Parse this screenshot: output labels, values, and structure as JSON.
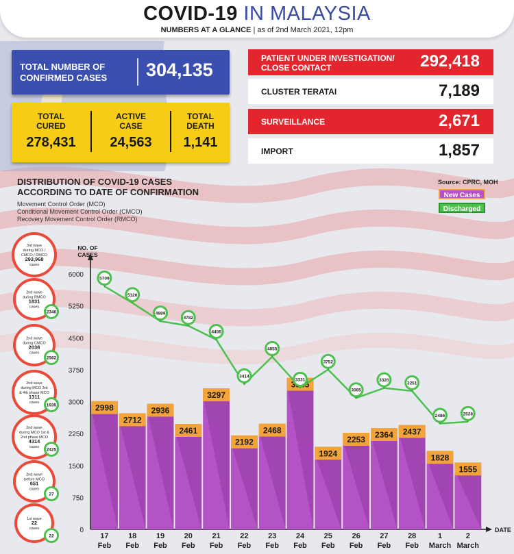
{
  "header": {
    "title_main": "COVID-19",
    "title_accent": "IN MALAYSIA",
    "subtitle_bold": "NUMBERS AT A GLANCE",
    "subtitle_rest": "| as of 2nd March 2021, 12pm"
  },
  "summary": {
    "total_confirmed_label_1": "TOTAL NUMBER OF",
    "total_confirmed_label_2": "CONFIRMED CASES",
    "total_confirmed_value": "304,135",
    "cured_label_1": "TOTAL",
    "cured_label_2": "CURED",
    "cured_value": "278,431",
    "active_label_1": "ACTIVE",
    "active_label_2": "CASE",
    "active_value": "24,563",
    "death_label_1": "TOTAL",
    "death_label_2": "DEATH",
    "death_value": "1,141"
  },
  "right_stats": [
    {
      "label_1": "PATIENT UNDER INVESTIGATION/",
      "label_2": "CLOSE CONTACT",
      "value": "292,418",
      "style": "red"
    },
    {
      "label_1": "CLUSTER TERATAI",
      "label_2": "",
      "value": "7,189",
      "style": "white"
    },
    {
      "label_1": "SURVEILLANCE",
      "label_2": "",
      "value": "2,671",
      "style": "red"
    },
    {
      "label_1": "IMPORT",
      "label_2": "",
      "value": "1,857",
      "style": "white"
    }
  ],
  "distribution": {
    "title_1": "DISTRIBUTION OF COVID-19 CASES",
    "title_2": "ACCORDING TO DATE OF CONFIRMATION",
    "note_1": "Movement Control Order (MCO)",
    "note_2": "Conditional Movement Control Order (CMCO)",
    "note_3": "Recovery Movement Control Order (RMCO)",
    "source": "Source: CPRC, MOH"
  },
  "waves": [
    {
      "lines": [
        "3rd wave",
        "during MCO /",
        "CMCO / RMCO"
      ],
      "count": "293,968",
      "suffix": "cases",
      "badge": ""
    },
    {
      "lines": [
        "2nd wave",
        "during RMCO"
      ],
      "count": "1831",
      "suffix": "cases",
      "badge": "2340"
    },
    {
      "lines": [
        "2nd wave",
        "during CMCO"
      ],
      "count": "2038",
      "suffix": "cases",
      "badge": "2562"
    },
    {
      "lines": [
        "2nd wave",
        "during MCO 3rd",
        "& 4th phase MCO"
      ],
      "count": "1311",
      "suffix": "cases",
      "badge": "1935"
    },
    {
      "lines": [
        "2nd wave",
        "during MCO 1st &",
        "2nd phase MCO"
      ],
      "count": "4314",
      "suffix": "cases",
      "badge": "2425"
    },
    {
      "lines": [
        "2nd wave",
        "before MCO"
      ],
      "count": "651",
      "suffix": "cases",
      "badge": "27"
    },
    {
      "lines": [
        "1st wave"
      ],
      "count": "22",
      "suffix": "cases",
      "badge": "22"
    }
  ],
  "chart_data": {
    "type": "bar",
    "ylabel_1": "NO. OF",
    "ylabel_2": "CASES",
    "xlabel": "DATE",
    "ylim": [
      0,
      6000
    ],
    "yticks": [
      0,
      750,
      1500,
      2250,
      3000,
      3750,
      4500,
      5250,
      6000
    ],
    "categories": [
      [
        "17",
        "Feb"
      ],
      [
        "18",
        "Feb"
      ],
      [
        "19",
        "Feb"
      ],
      [
        "20",
        "Feb"
      ],
      [
        "21",
        "Feb"
      ],
      [
        "22",
        "Feb"
      ],
      [
        "23",
        "Feb"
      ],
      [
        "24",
        "Feb"
      ],
      [
        "25",
        "Feb"
      ],
      [
        "26",
        "Feb"
      ],
      [
        "27",
        "Feb"
      ],
      [
        "28",
        "Feb"
      ],
      [
        "1",
        "March"
      ],
      [
        "2",
        "March"
      ]
    ],
    "series": [
      {
        "name": "New Cases",
        "type": "bar",
        "color": "#b453c5",
        "values": [
          2998,
          2712,
          2936,
          2461,
          3297,
          2192,
          2468,
          3545,
          1924,
          2253,
          2364,
          2437,
          1828,
          1555
        ]
      },
      {
        "name": "Discharged",
        "type": "line",
        "color": "#4cbf4f",
        "values": [
          5709,
          5320,
          4889,
          4782,
          4456,
          3414,
          4055,
          3331,
          3752,
          3085,
          3320,
          3251,
          2486,
          2528
        ]
      }
    ],
    "legend": "top-right"
  }
}
